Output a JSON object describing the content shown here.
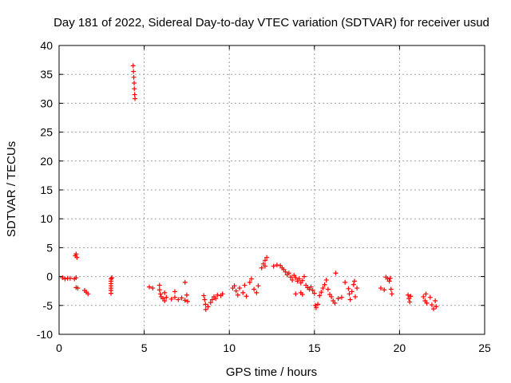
{
  "chart_data": {
    "type": "scatter",
    "title": "Day 181 of 2022, Sidereal Day-to-day VTEC variation (SDTVAR) for receiver usud",
    "xlabel": "GPS time / hours",
    "ylabel": "SDTVAR / TECUs",
    "xlim": [
      0,
      25
    ],
    "ylim": [
      -10,
      40
    ],
    "xticks": [
      0,
      5,
      10,
      15,
      20,
      25
    ],
    "yticks": [
      -10,
      -5,
      0,
      5,
      10,
      15,
      20,
      25,
      30,
      35,
      40
    ],
    "grid": true,
    "marker": "+",
    "series": [
      {
        "name": "SDTVAR",
        "color": "#ff0000",
        "points": [
          [
            0.2,
            -0.2
          ],
          [
            0.35,
            -0.4
          ],
          [
            0.5,
            -0.3
          ],
          [
            0.65,
            -0.3
          ],
          [
            0.9,
            -0.4
          ],
          [
            1.0,
            -0.2
          ],
          [
            1.0,
            -1.9
          ],
          [
            1.1,
            -2.0
          ],
          [
            0.95,
            3.6
          ],
          [
            1.05,
            3.3
          ],
          [
            1.0,
            3.9
          ],
          [
            1.5,
            -2.4
          ],
          [
            1.6,
            -2.7
          ],
          [
            1.7,
            -3.0
          ],
          [
            3.05,
            -0.4
          ],
          [
            3.05,
            -0.8
          ],
          [
            3.05,
            -1.2
          ],
          [
            3.05,
            -1.6
          ],
          [
            3.05,
            -2.0
          ],
          [
            3.05,
            -2.4
          ],
          [
            3.05,
            -2.9
          ],
          [
            3.1,
            -0.2
          ],
          [
            4.35,
            36.5
          ],
          [
            4.37,
            35.5
          ],
          [
            4.39,
            34.5
          ],
          [
            4.41,
            33.5
          ],
          [
            4.42,
            32.5
          ],
          [
            4.44,
            31.5
          ],
          [
            4.46,
            30.8
          ],
          [
            5.3,
            -1.8
          ],
          [
            5.5,
            -2.0
          ],
          [
            5.9,
            -2.3
          ],
          [
            5.95,
            -3.0
          ],
          [
            6.0,
            -3.5
          ],
          [
            6.1,
            -3.8
          ],
          [
            6.2,
            -4.2
          ],
          [
            6.3,
            -3.6
          ],
          [
            5.9,
            -1.5
          ],
          [
            6.2,
            -2.8
          ],
          [
            6.6,
            -3.9
          ],
          [
            6.8,
            -3.6
          ],
          [
            6.8,
            -2.6
          ],
          [
            7.0,
            -4.0
          ],
          [
            7.2,
            -3.7
          ],
          [
            7.4,
            -4.1
          ],
          [
            7.5,
            -3.2
          ],
          [
            7.55,
            -4.3
          ],
          [
            7.4,
            -1.0
          ],
          [
            8.5,
            -3.3
          ],
          [
            8.55,
            -4.0
          ],
          [
            8.6,
            -4.8
          ],
          [
            8.62,
            -5.7
          ],
          [
            8.75,
            -5.2
          ],
          [
            8.9,
            -4.5
          ],
          [
            9.0,
            -4.0
          ],
          [
            9.1,
            -3.5
          ],
          [
            9.2,
            -3.8
          ],
          [
            9.3,
            -3.2
          ],
          [
            9.5,
            -3.3
          ],
          [
            9.6,
            -3.0
          ],
          [
            10.2,
            -2.0
          ],
          [
            10.3,
            -1.6
          ],
          [
            10.4,
            -2.5
          ],
          [
            10.5,
            -3.2
          ],
          [
            10.6,
            -2.0
          ],
          [
            10.8,
            -2.8
          ],
          [
            10.9,
            -1.5
          ],
          [
            11.0,
            -3.4
          ],
          [
            11.2,
            -1.0
          ],
          [
            11.3,
            -0.4
          ],
          [
            11.45,
            -2.2
          ],
          [
            11.6,
            -2.8
          ],
          [
            11.7,
            -1.6
          ],
          [
            11.9,
            1.5
          ],
          [
            12.0,
            2.2
          ],
          [
            12.1,
            2.8
          ],
          [
            12.2,
            3.3
          ],
          [
            12.1,
            1.8
          ],
          [
            12.6,
            1.8
          ],
          [
            12.8,
            2.0
          ],
          [
            13.0,
            1.9
          ],
          [
            13.1,
            1.5
          ],
          [
            13.2,
            1.2
          ],
          [
            13.3,
            0.8
          ],
          [
            13.4,
            0.3
          ],
          [
            13.5,
            0.6
          ],
          [
            13.6,
            -0.1
          ],
          [
            13.7,
            -0.6
          ],
          [
            13.8,
            0.2
          ],
          [
            13.9,
            -0.2
          ],
          [
            14.0,
            -0.8
          ],
          [
            14.1,
            -0.4
          ],
          [
            14.2,
            -1.1
          ],
          [
            14.3,
            -0.7
          ],
          [
            14.4,
            0.0
          ],
          [
            14.5,
            -1.5
          ],
          [
            14.6,
            -1.9
          ],
          [
            14.7,
            -2.2
          ],
          [
            14.2,
            -2.8
          ],
          [
            13.9,
            -3.0
          ],
          [
            14.3,
            -3.1
          ],
          [
            14.8,
            -1.8
          ],
          [
            14.9,
            -2.4
          ],
          [
            15.0,
            -2.9
          ],
          [
            15.05,
            -5.0
          ],
          [
            15.1,
            -5.4
          ],
          [
            15.2,
            -4.8
          ],
          [
            15.3,
            -3.3
          ],
          [
            15.4,
            -2.7
          ],
          [
            15.5,
            -2.0
          ],
          [
            15.6,
            -1.4
          ],
          [
            15.7,
            -0.6
          ],
          [
            15.8,
            -2.2
          ],
          [
            15.9,
            -3.1
          ],
          [
            16.0,
            -3.5
          ],
          [
            16.1,
            -4.2
          ],
          [
            16.2,
            -4.6
          ],
          [
            16.25,
            0.6
          ],
          [
            16.4,
            -3.8
          ],
          [
            16.6,
            -3.6
          ],
          [
            16.8,
            -1.0
          ],
          [
            17.0,
            -2.1
          ],
          [
            17.05,
            -3.0
          ],
          [
            17.1,
            -4.0
          ],
          [
            17.2,
            -2.6
          ],
          [
            17.3,
            -1.4
          ],
          [
            17.35,
            -0.8
          ],
          [
            17.4,
            -3.5
          ],
          [
            17.5,
            -2.0
          ],
          [
            18.9,
            -2.0
          ],
          [
            19.1,
            -2.3
          ],
          [
            19.2,
            -0.1
          ],
          [
            19.3,
            -0.4
          ],
          [
            19.4,
            -0.8
          ],
          [
            19.5,
            -2.2
          ],
          [
            19.55,
            -3.0
          ],
          [
            19.45,
            -0.3
          ],
          [
            20.5,
            -3.2
          ],
          [
            20.55,
            -3.8
          ],
          [
            20.6,
            -4.4
          ],
          [
            20.65,
            -3.4
          ],
          [
            21.4,
            -3.5
          ],
          [
            21.5,
            -4.2
          ],
          [
            21.55,
            -3.0
          ],
          [
            21.6,
            -4.6
          ],
          [
            21.8,
            -3.6
          ],
          [
            21.9,
            -4.9
          ],
          [
            22.0,
            -5.6
          ],
          [
            22.1,
            -4.2
          ],
          [
            22.15,
            -5.2
          ]
        ]
      }
    ]
  }
}
